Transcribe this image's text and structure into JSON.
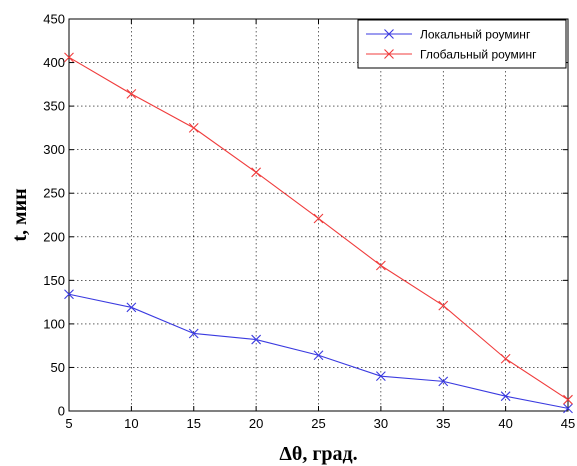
{
  "chart_data": {
    "type": "line",
    "xlabel": "Δθ, град.",
    "ylabel": "t, мин",
    "xlim": [
      5,
      45
    ],
    "ylim": [
      0,
      450
    ],
    "x_ticks": [
      5,
      10,
      15,
      20,
      25,
      30,
      35,
      40,
      45
    ],
    "y_ticks": [
      0,
      50,
      100,
      150,
      200,
      250,
      300,
      350,
      400,
      450
    ],
    "grid": true,
    "legend_position": "top-right",
    "marker": "x",
    "x": [
      5,
      10,
      15,
      20,
      25,
      30,
      35,
      40,
      45
    ],
    "series": [
      {
        "name": "Локальный роуминг",
        "color": "#3a3ae0",
        "values": [
          134,
          119,
          89,
          82,
          64,
          40,
          34,
          17,
          3
        ]
      },
      {
        "name": "Глобальный роуминг",
        "color": "#f03c3c",
        "values": [
          406,
          364,
          325,
          274,
          221,
          167,
          121,
          60,
          13
        ]
      }
    ]
  }
}
